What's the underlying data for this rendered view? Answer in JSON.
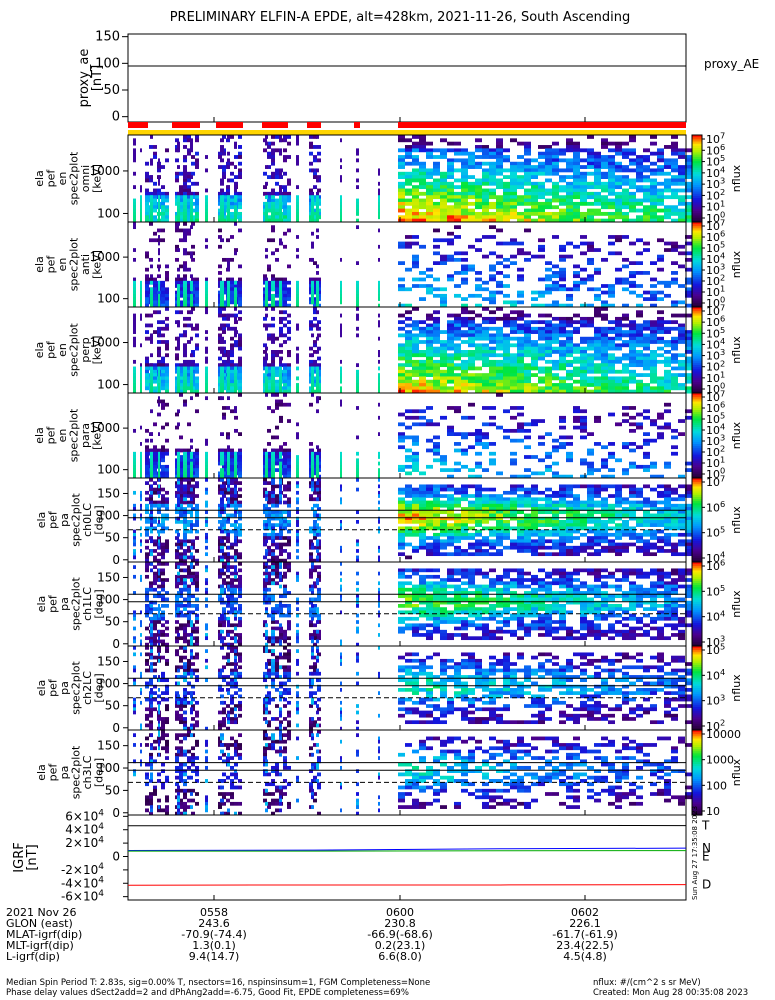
{
  "title": "PRELIMINARY ELFIN-A EPDE, alt=428km, 2021-11-26, South Ascending",
  "chart_data": [
    {
      "type": "line",
      "panel": "proxy_ae",
      "ylabel_lines": [
        "proxy_ae",
        "[nT]"
      ],
      "ylim": [
        -10,
        155
      ],
      "yticks": [
        0,
        50,
        100,
        150
      ],
      "series": [
        {
          "name": "proxy_AE",
          "values": [
            95,
            95
          ]
        }
      ],
      "legend": "right"
    },
    {
      "type": "heatmap",
      "panel": "elx_pef_en_spec2plot_omni",
      "ylabel_lines": [
        "ela",
        "pef",
        "en",
        "spec2plot",
        "omni",
        "[keV]"
      ],
      "yscale": "log",
      "ylim": [
        63,
        7000
      ],
      "yticks": [
        100,
        1000
      ],
      "colorbar": {
        "label": "nflux",
        "scale": "log",
        "ticks": [
          "10^7",
          "10^6",
          "10^5",
          "10^4",
          "10^3",
          "10^2",
          "10^1",
          "10^0"
        ]
      }
    },
    {
      "type": "heatmap",
      "panel": "elx_pef_en_spec2plot_anti",
      "ylabel_lines": [
        "ela",
        "pef",
        "en",
        "spec2plot",
        "anti",
        "[keV]"
      ],
      "yscale": "log",
      "ylim": [
        63,
        7000
      ],
      "yticks": [
        100,
        1000
      ],
      "colorbar": {
        "label": "nflux",
        "scale": "log",
        "ticks": [
          "10^7",
          "10^6",
          "10^5",
          "10^4",
          "10^3",
          "10^2",
          "10^1",
          "10^0"
        ]
      }
    },
    {
      "type": "heatmap",
      "panel": "elx_pef_en_spec2plot_perp",
      "ylabel_lines": [
        "ela",
        "pef",
        "en",
        "spec2plot",
        "perp",
        "[keV]"
      ],
      "yscale": "log",
      "ylim": [
        63,
        7000
      ],
      "yticks": [
        100,
        1000
      ],
      "colorbar": {
        "label": "nflux",
        "scale": "log",
        "ticks": [
          "10^7",
          "10^6",
          "10^5",
          "10^4",
          "10^3",
          "10^2",
          "10^1",
          "10^0"
        ]
      }
    },
    {
      "type": "heatmap",
      "panel": "elx_pef_en_spec2plot_para",
      "ylabel_lines": [
        "ela",
        "pef",
        "en",
        "spec2plot",
        "para",
        "[keV]"
      ],
      "yscale": "log",
      "ylim": [
        63,
        7000
      ],
      "yticks": [
        100,
        1000
      ],
      "colorbar": {
        "label": "nflux",
        "scale": "log",
        "ticks": [
          "10^7",
          "10^6",
          "10^5",
          "10^4",
          "10^3",
          "10^2",
          "10^1",
          "10^0"
        ]
      }
    },
    {
      "type": "heatmap",
      "panel": "elx_pef_pa_spec2plot_ch0LC",
      "ylabel_lines": [
        "ela",
        "pef",
        "pa",
        "spec2plot",
        "ch0LC",
        "[deg]"
      ],
      "ylim": [
        -5,
        185
      ],
      "yticks": [
        0,
        50,
        100,
        150
      ],
      "lc_lines": [
        68,
        95,
        112
      ],
      "colorbar": {
        "label": "nflux",
        "scale": "log",
        "ticks": [
          "10^7",
          "10^6",
          "10^5",
          "10^4"
        ]
      }
    },
    {
      "type": "heatmap",
      "panel": "elx_pef_pa_spec2plot_ch1LC",
      "ylabel_lines": [
        "ela",
        "pef",
        "pa",
        "spec2plot",
        "ch1LC",
        "[deg]"
      ],
      "ylim": [
        -5,
        185
      ],
      "yticks": [
        0,
        50,
        100,
        150
      ],
      "lc_lines": [
        68,
        95,
        112
      ],
      "colorbar": {
        "label": "nflux",
        "scale": "log",
        "ticks": [
          "10^6",
          "10^5",
          "10^4",
          "10^3"
        ]
      }
    },
    {
      "type": "heatmap",
      "panel": "elx_pef_pa_spec2plot_ch2LC",
      "ylabel_lines": [
        "ela",
        "pef",
        "pa",
        "spec2plot",
        "ch2LC",
        "[deg]"
      ],
      "ylim": [
        -5,
        185
      ],
      "yticks": [
        0,
        50,
        100,
        150
      ],
      "lc_lines": [
        68,
        95,
        112
      ],
      "colorbar": {
        "label": "nflux",
        "scale": "log",
        "ticks": [
          "10^5",
          "10^4",
          "10^3",
          "10^2"
        ]
      }
    },
    {
      "type": "heatmap",
      "panel": "elx_pef_pa_spec2plot_ch3LC",
      "ylabel_lines": [
        "ela",
        "pef",
        "pa",
        "spec2plot",
        "ch3LC",
        "[deg]"
      ],
      "ylim": [
        -5,
        185
      ],
      "yticks": [
        0,
        50,
        100,
        150
      ],
      "lc_lines": [
        68,
        95,
        112
      ],
      "colorbar": {
        "label": "nflux",
        "scale": "linear-log",
        "ticks": [
          "10000",
          "1000",
          "100",
          "10"
        ]
      }
    },
    {
      "type": "line",
      "panel": "igrf",
      "ylabel_lines": [
        "IGRF",
        "[nT]"
      ],
      "ylim": [
        -65000,
        62000
      ],
      "yticks": [
        "6×10^4",
        "4×10^4",
        "2×10^4",
        "0",
        "-2×10^4",
        "-4×10^4",
        "-6×10^4"
      ],
      "ytick_values": [
        60000,
        40000,
        20000,
        0,
        -20000,
        -40000,
        -60000
      ],
      "series": [
        {
          "name": "T",
          "color": "#000000",
          "values": [
            46000,
            46000,
            46500,
            46200
          ]
        },
        {
          "name": "N",
          "color": "#0000ff",
          "values": [
            9000,
            9500,
            11500,
            12500
          ]
        },
        {
          "name": "E",
          "color": "#00aa00",
          "values": [
            8000,
            8000,
            8500,
            8800
          ]
        },
        {
          "name": "D",
          "color": "#ff0000",
          "values": [
            -43000,
            -42500,
            -42500,
            -42000
          ]
        }
      ],
      "side_stamp": "Sun Aug 27 17:35:08 2023"
    }
  ],
  "xaxis": {
    "ticks": [
      "0558",
      "0600",
      "0602"
    ],
    "rows": [
      {
        "label": "2021 Nov 26",
        "values": [
          "0558",
          "0600",
          "0602"
        ]
      },
      {
        "label": "GLON (east)",
        "values": [
          "243.6",
          "230.8",
          "226.1"
        ]
      },
      {
        "label": "MLAT-igrf(dip)",
        "values": [
          "-70.9(-74.4)",
          "-66.9(-68.6)",
          "-61.7(-61.9)"
        ]
      },
      {
        "label": "MLT-igrf(dip)",
        "values": [
          "1.3(0.1)",
          "0.2(23.1)",
          "23.4(22.5)"
        ]
      },
      {
        "label": "L-igrf(dip)",
        "values": [
          "9.4(14.7)",
          "6.6(8.0)",
          "4.5(4.8)"
        ]
      }
    ]
  },
  "notes": {
    "line1": "Median Spin Period T: 2.83s, sig=0.00% T, nsectors=16, nspinsinsum=1, FGM Completeness=None",
    "line2": "Phase delay values dSect2add=2 and dPhAng2add=-6.75, Good Fit, EPDE completeness=69%",
    "right1": "nflux: #/(cm^2 s sr MeV)",
    "right2": "Created: Mon Aug 28 00:35:08 2023"
  }
}
